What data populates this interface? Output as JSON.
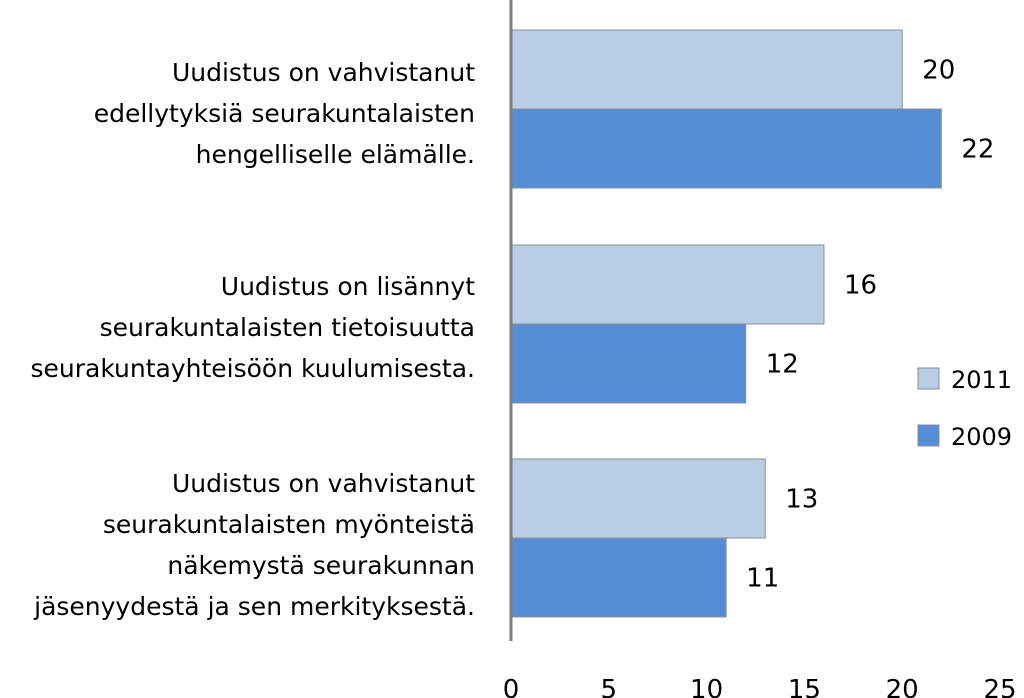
{
  "chart_data": {
    "type": "bar",
    "orientation": "horizontal",
    "categories": [
      [
        "Uudistus on vahvistanut",
        "edellytyksiä seurakuntalaisten",
        "hengelliselle elämälle."
      ],
      [
        "Uudistus on lisännyt",
        "seurakuntalaisten tietoisuutta",
        "seurakuntayhteisöön kuulumisesta."
      ],
      [
        "Uudistus on vahvistanut",
        "seurakuntalaisten myönteistä",
        "näkemystä seurakunnan",
        "jäsenyydestä ja sen merkityksestä."
      ]
    ],
    "series": [
      {
        "name": "2011",
        "values": [
          20,
          16,
          13
        ],
        "color": "#b9cde5"
      },
      {
        "name": "2009",
        "values": [
          22,
          12,
          11
        ],
        "color": "#558ed5"
      }
    ],
    "xlim": [
      0,
      25
    ],
    "xticks": [
      0,
      5,
      10,
      15,
      20,
      25
    ],
    "legend_position": "right",
    "grid": false,
    "axis_color": "#808080"
  }
}
